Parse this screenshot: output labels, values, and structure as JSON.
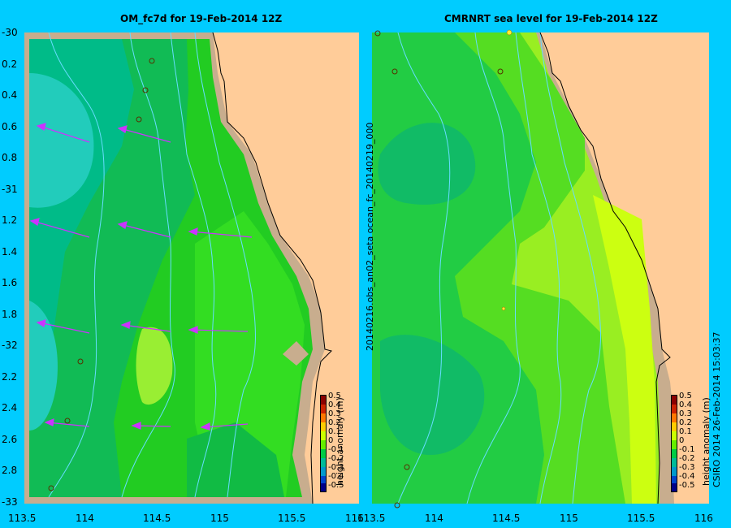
{
  "background_color": "#00ccff",
  "land_color": "#ffcc99",
  "coast_color": "#c8ad8e",
  "left_panel": {
    "title": "OM_fc7d for 19-Feb-2014 12Z",
    "y_ticks": [
      "-30",
      "0.2",
      "0.4",
      "0.6",
      "0.8",
      "-31",
      "1.2",
      "1.4",
      "1.6",
      "1.8",
      "-32",
      "2.2",
      "2.4",
      "2.6",
      "2.8",
      "-33"
    ],
    "x_ticks": [
      "113.5",
      "114",
      "114.5",
      "115",
      "115.5",
      "116"
    ]
  },
  "right_panel": {
    "title": "CMRNRT sea level  for 19-Feb-2014 12Z",
    "x_ticks": [
      "113.5",
      "114",
      "114.5",
      "115",
      "115.5",
      "116"
    ],
    "side_label": "20140216.obs_an02_seta      ocean_fc_20140219_000"
  },
  "colorbar": {
    "label": "height anomaly (m)",
    "ticks": [
      "0.5",
      "0.4",
      "0.3",
      "0.2",
      "0.1",
      "0",
      "-0.1",
      "-0.2",
      "-0.3",
      "-0.4",
      "-0.5"
    ]
  },
  "credit": "CSIRO 2014   26-Feb-2014 15:03:37",
  "legend_colors": [
    "#8b0000",
    "#cc2200",
    "#ff7700",
    "#ffcc00",
    "#ccff00",
    "#66ee00",
    "#00cc44",
    "#00bb99",
    "#0099cc",
    "#0044cc",
    "#000088"
  ]
}
